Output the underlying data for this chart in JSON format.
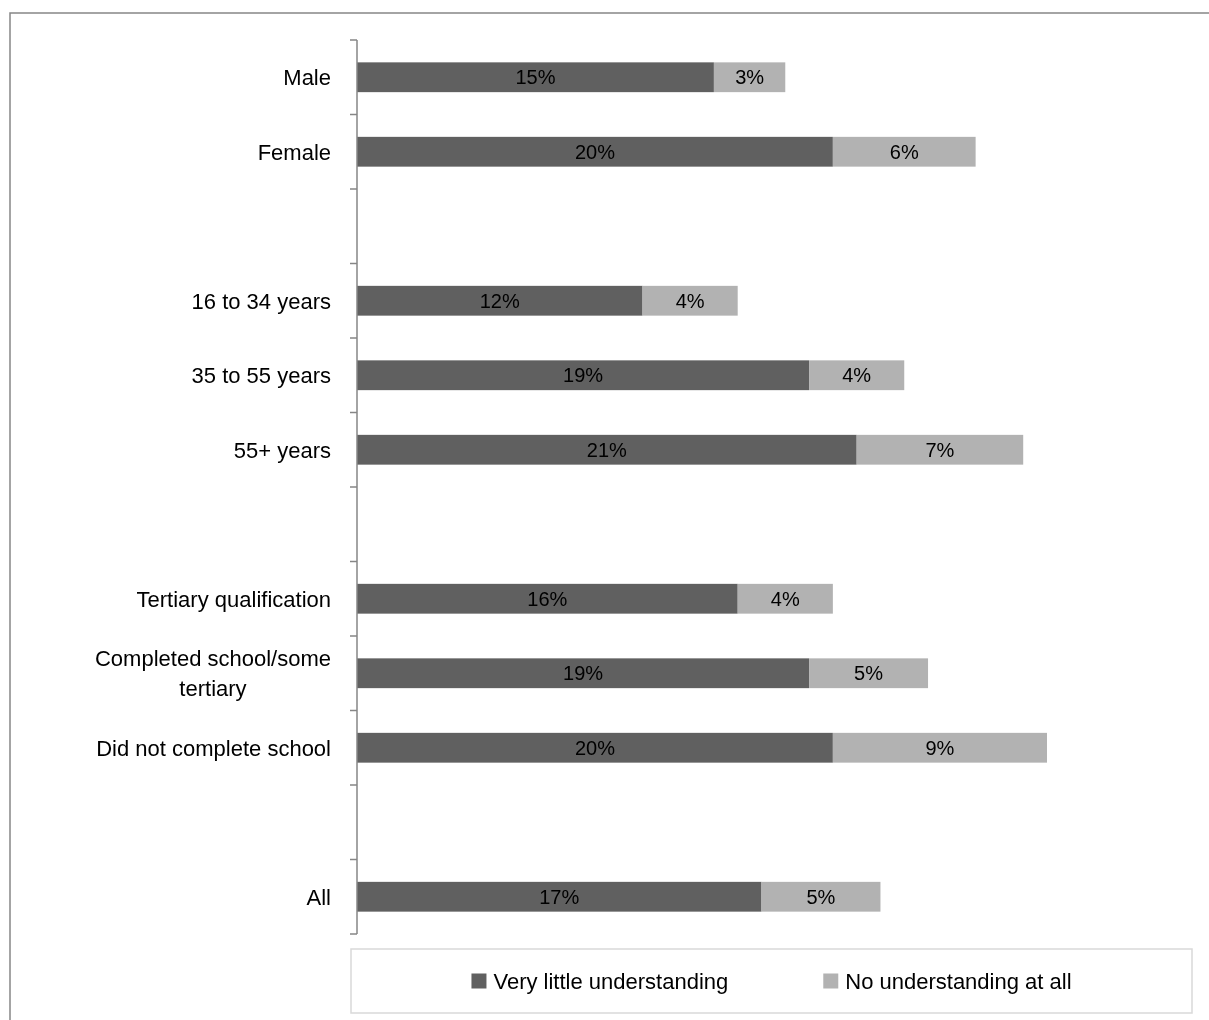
{
  "chart_data": {
    "type": "bar",
    "orientation": "horizontal",
    "stacked": true,
    "legend": "bottom",
    "tick_labels": "y",
    "categories": [
      "Male",
      "Female",
      null,
      "16 to 34 years",
      "35 to 55 years",
      "55+ years",
      null,
      "Tertiary qualification",
      "Completed school/some tertiary",
      "Did not complete school",
      null,
      "All"
    ],
    "series": [
      {
        "name": "Very little understanding",
        "color": "#606060",
        "values": [
          15,
          20,
          null,
          12,
          19,
          21,
          null,
          16,
          19,
          20,
          null,
          17
        ],
        "value_labels": [
          "15%",
          "20%",
          null,
          "12%",
          "19%",
          "21%",
          null,
          "16%",
          "19%",
          "20%",
          null,
          "17%"
        ]
      },
      {
        "name": "No understanding at all",
        "color": "#b2b2b2",
        "values": [
          3,
          6,
          null,
          4,
          4,
          7,
          null,
          4,
          5,
          9,
          null,
          5
        ],
        "value_labels": [
          "3%",
          "6%",
          null,
          "4%",
          "4%",
          "7%",
          null,
          "4%",
          "5%",
          "9%",
          null,
          "5%"
        ]
      }
    ]
  }
}
